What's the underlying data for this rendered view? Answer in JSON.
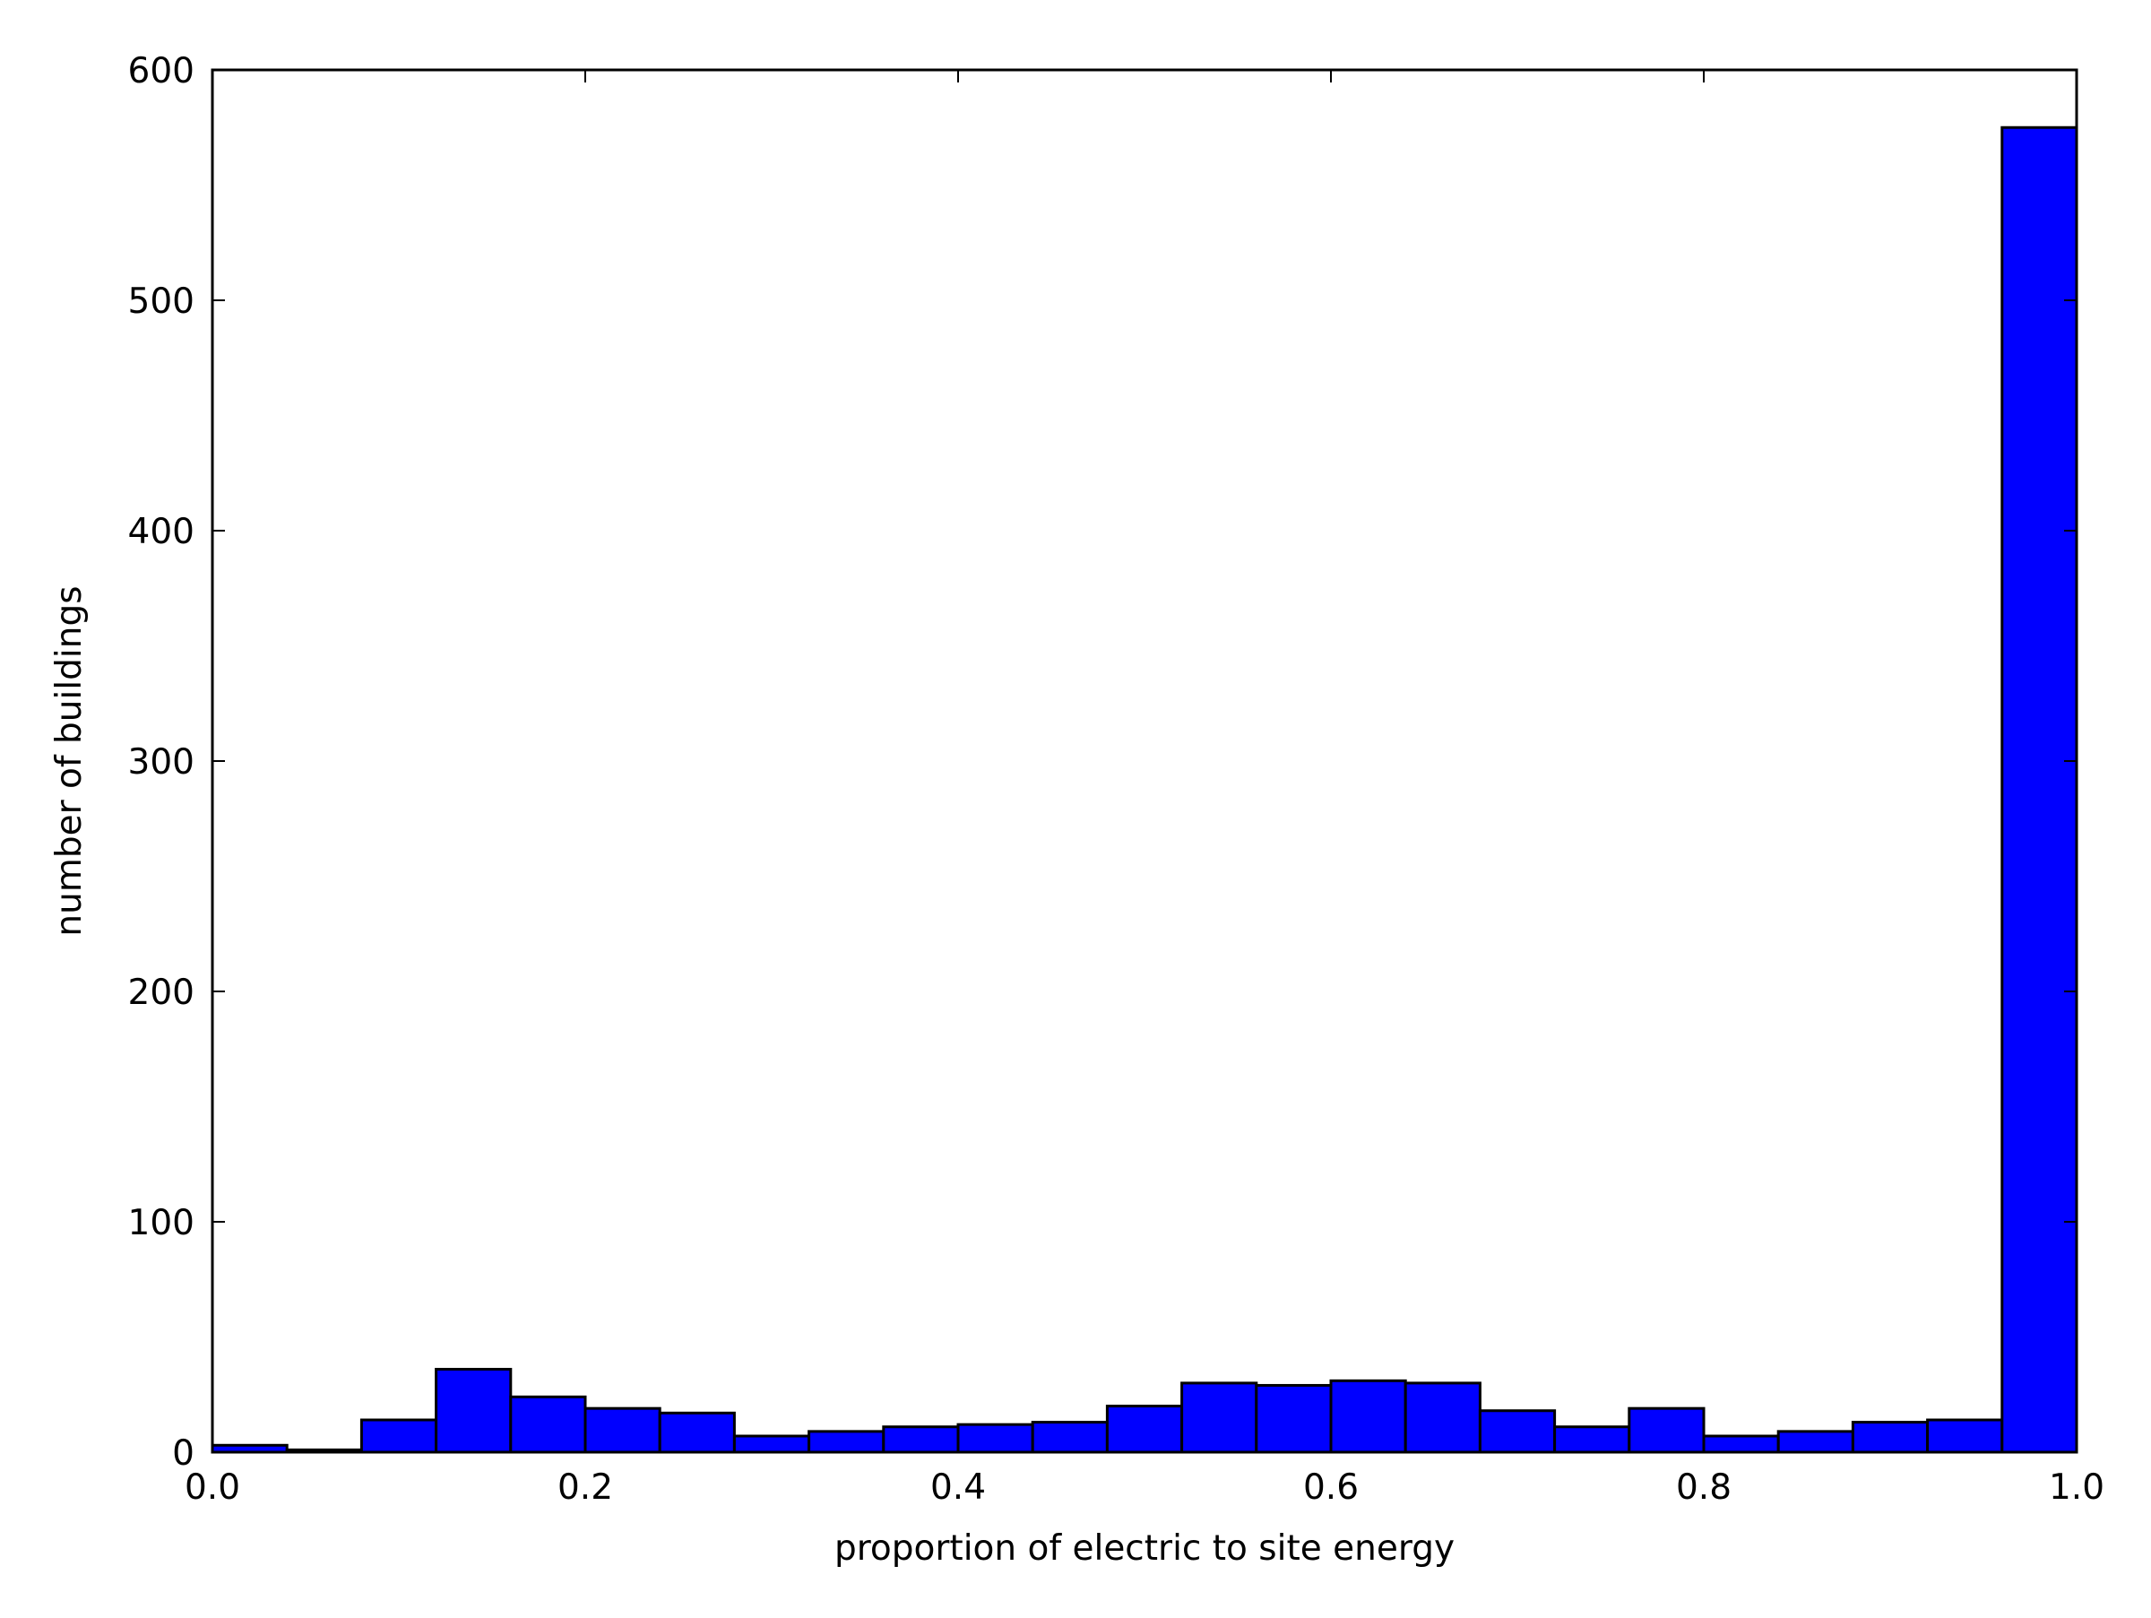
{
  "chart_data": {
    "type": "bar",
    "title": "",
    "xlabel": "proportion of electric to site energy",
    "ylabel": "number of buildings",
    "xlim": [
      0.0,
      1.0
    ],
    "ylim": [
      0,
      600
    ],
    "x_ticks": [
      "0.0",
      "0.2",
      "0.4",
      "0.6",
      "0.8",
      "1.0"
    ],
    "y_ticks": [
      "0",
      "100",
      "200",
      "300",
      "400",
      "500",
      "600"
    ],
    "bin_edges": [
      0.0,
      0.04,
      0.08,
      0.12,
      0.16,
      0.2,
      0.24,
      0.28,
      0.32,
      0.36,
      0.4,
      0.44,
      0.48,
      0.52,
      0.56,
      0.6,
      0.64,
      0.68,
      0.72,
      0.76,
      0.8,
      0.84,
      0.88,
      0.92,
      0.96,
      1.0
    ],
    "values": [
      3,
      1,
      14,
      36,
      24,
      19,
      17,
      7,
      9,
      11,
      12,
      13,
      20,
      30,
      29,
      31,
      30,
      18,
      11,
      19,
      7,
      9,
      13,
      14,
      575
    ],
    "grid": false,
    "legend": "none",
    "bar_color": "#0000ff",
    "edge_color": "#000000"
  }
}
